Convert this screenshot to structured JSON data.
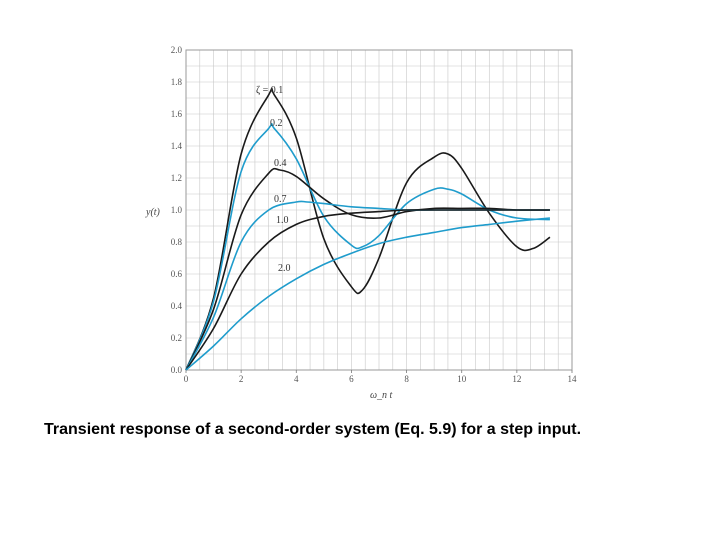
{
  "caption": "Transient response of a second-order system (Eq. 5.9) for a step input.",
  "colors": {
    "black_curve": "#1a1a1a",
    "blue_curve": "#1f9ccc",
    "grid": "#c8c8c8"
  },
  "chart_data": {
    "type": "line",
    "title": "",
    "xlabel": "ω_n t",
    "ylabel": "y(t)",
    "xlim": [
      0,
      14
    ],
    "ylim": [
      0,
      2.0
    ],
    "xticks": [
      "0",
      "2",
      "4",
      "6",
      "8",
      "10",
      "12",
      "14"
    ],
    "yticks": [
      "0.0",
      "0.2",
      "0.4",
      "0.6",
      "0.8",
      "1.0",
      "1.2",
      "1.4",
      "1.6",
      "1.8",
      "2.0"
    ],
    "grid": true,
    "series": [
      {
        "name": "ζ = 0.1",
        "zeta": 0.1,
        "color": "black",
        "x": [
          0,
          1,
          2,
          3,
          3.2,
          4,
          5,
          6,
          6.4,
          7,
          8,
          9,
          9.5,
          10,
          11,
          12,
          12.6,
          13.2
        ],
        "y": [
          0,
          0.45,
          1.35,
          1.72,
          1.72,
          1.45,
          0.82,
          0.52,
          0.5,
          0.7,
          1.17,
          1.33,
          1.35,
          1.26,
          0.98,
          0.77,
          0.76,
          0.83
        ]
      },
      {
        "name": "0.2",
        "zeta": 0.2,
        "color": "blue",
        "x": [
          0,
          1,
          2,
          3,
          3.2,
          4,
          5,
          6,
          6.4,
          7,
          8,
          9,
          9.5,
          10,
          11,
          12,
          13.2
        ],
        "y": [
          0,
          0.43,
          1.24,
          1.51,
          1.51,
          1.32,
          0.96,
          0.78,
          0.77,
          0.84,
          1.04,
          1.13,
          1.13,
          1.1,
          1.0,
          0.95,
          0.94
        ]
      },
      {
        "name": "0.4",
        "zeta": 0.4,
        "color": "black",
        "x": [
          0,
          1,
          2,
          3,
          3.4,
          4,
          5,
          6,
          7,
          8,
          9,
          10,
          11,
          12,
          13.2
        ],
        "y": [
          0,
          0.38,
          0.97,
          1.23,
          1.25,
          1.21,
          1.07,
          0.97,
          0.95,
          0.99,
          1.01,
          1.01,
          1.01,
          1.0,
          1.0
        ]
      },
      {
        "name": "0.7",
        "zeta": 0.7,
        "color": "blue",
        "x": [
          0,
          1,
          2,
          3,
          4,
          4.4,
          5,
          6,
          7,
          8,
          9,
          10,
          11,
          12,
          13.2
        ],
        "y": [
          0,
          0.33,
          0.8,
          1.0,
          1.05,
          1.05,
          1.04,
          1.02,
          1.01,
          1.0,
          1.0,
          1.0,
          1.0,
          1.0,
          1.0
        ]
      },
      {
        "name": "1.0",
        "zeta": 1.0,
        "color": "black",
        "x": [
          0,
          1,
          2,
          3,
          4,
          5,
          6,
          7,
          8,
          9,
          10,
          11,
          12,
          13.2
        ],
        "y": [
          0,
          0.26,
          0.6,
          0.8,
          0.91,
          0.96,
          0.98,
          0.99,
          1.0,
          1.0,
          1.0,
          1.0,
          1.0,
          1.0
        ]
      },
      {
        "name": "2.0",
        "zeta": 2.0,
        "color": "blue",
        "x": [
          0,
          1,
          2,
          3,
          4,
          5,
          6,
          7,
          8,
          9,
          10,
          11,
          12,
          13.2
        ],
        "y": [
          0,
          0.15,
          0.32,
          0.46,
          0.57,
          0.66,
          0.73,
          0.79,
          0.83,
          0.86,
          0.89,
          0.91,
          0.93,
          0.95
        ]
      }
    ],
    "curve_label_text": [
      "ζ = 0.1",
      "0.2",
      "0.4",
      "0.7",
      "1.0",
      "2.0"
    ]
  }
}
